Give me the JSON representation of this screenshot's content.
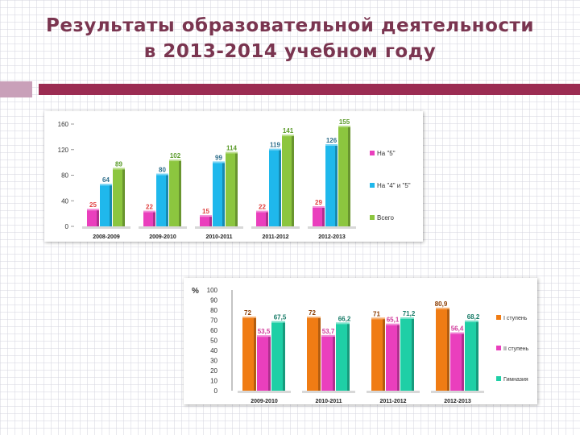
{
  "title": {
    "line1": "Результаты образовательной деятельности",
    "line2": "в 2013-2014 учебном году"
  },
  "colors": {
    "title": "#7a3550",
    "accent_bar": "#9b2c52",
    "accent_square": "#c9a0b9"
  },
  "chart_data": [
    {
      "type": "bar",
      "title": "",
      "xlabel": "",
      "ylabel": "",
      "categories": [
        "2008-2009",
        "2009-2010",
        "2010-2011",
        "2011-2012",
        "2012-2013"
      ],
      "ylim": [
        0,
        160
      ],
      "yticks": [
        "0",
        "40",
        "80",
        "120",
        "160"
      ],
      "grid": false,
      "legend_position": "right",
      "series": [
        {
          "name": "На \"5\"",
          "color": "#ea3fbd",
          "values": [
            25,
            22,
            15,
            22,
            29
          ],
          "labels": [
            "25",
            "22",
            "15",
            "22",
            "29"
          ],
          "label_color": "#e04040"
        },
        {
          "name": "На \"4\" и \"5\"",
          "color": "#1fb8ec",
          "values": [
            64,
            80,
            99,
            119,
            126
          ],
          "labels": [
            "64",
            "80",
            "99",
            "119",
            "126"
          ],
          "label_color": "#2f6f8c"
        },
        {
          "name": "Всего",
          "color": "#8cc63f",
          "values": [
            89,
            102,
            114,
            141,
            155
          ],
          "labels": [
            "89",
            "102",
            "114",
            "141",
            "155"
          ],
          "label_color": "#5b9b2a"
        }
      ]
    },
    {
      "type": "bar",
      "title": "",
      "xlabel": "",
      "ylabel": "%",
      "categories": [
        "2009-2010",
        "2010-2011",
        "2011-2012",
        "2012-2013"
      ],
      "ylim": [
        0,
        100
      ],
      "yticks": [
        "0",
        "10",
        "20",
        "30",
        "40",
        "50",
        "60",
        "70",
        "80",
        "90",
        "100"
      ],
      "grid": false,
      "legend_position": "right",
      "series": [
        {
          "name": "I ступень",
          "color": "#f07c14",
          "values": [
            72,
            72,
            71,
            80.9
          ],
          "labels": [
            "72",
            "72",
            "71",
            "80,9"
          ],
          "label_color": "#8a3b00"
        },
        {
          "name": "II ступень",
          "color": "#ea3fbd",
          "values": [
            53.5,
            53.7,
            65.1,
            56.4
          ],
          "labels": [
            "53,5",
            "53,7",
            "65,1",
            "56,4"
          ],
          "label_color": "#d03a9a"
        },
        {
          "name": "Гимназия",
          "color": "#1fcfa6",
          "values": [
            67.5,
            66.2,
            71.2,
            68.2
          ],
          "labels": [
            "67,5",
            "66,2",
            "71,2",
            "68,2"
          ],
          "label_color": "#157a66"
        }
      ]
    }
  ]
}
